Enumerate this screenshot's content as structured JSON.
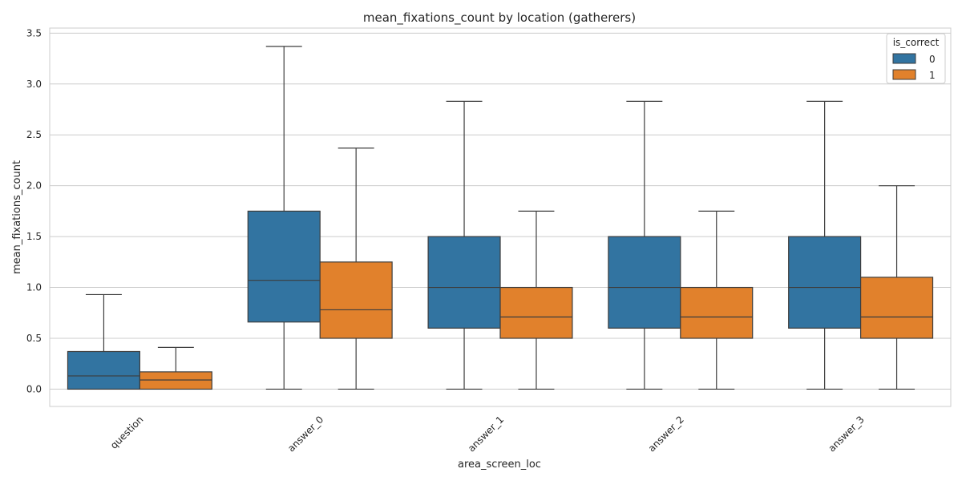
{
  "chart_data": {
    "type": "box",
    "title": "mean_fixations_count by location (gatherers)",
    "xlabel": "area_screen_loc",
    "ylabel": "mean_fixations_count",
    "ylim": [
      -0.17,
      3.55
    ],
    "yticks": [
      "0.0",
      "0.5",
      "1.0",
      "1.5",
      "2.0",
      "2.5",
      "3.0",
      "3.5"
    ],
    "ytick_values": [
      0,
      0.5,
      1.0,
      1.5,
      2.0,
      2.5,
      3.0,
      3.5
    ],
    "grid": true,
    "legend": {
      "title": "is_correct",
      "placement": "top-right"
    },
    "categories": [
      "question",
      "answer_0",
      "answer_1",
      "answer_2",
      "answer_3"
    ],
    "series": [
      {
        "name": "0",
        "color": "#3274a1",
        "boxes": [
          {
            "whisker_low": 0.0,
            "q1": 0.0,
            "median": 0.13,
            "q3": 0.37,
            "whisker_high": 0.93
          },
          {
            "whisker_low": 0.0,
            "q1": 0.66,
            "median": 1.07,
            "q3": 1.75,
            "whisker_high": 3.37
          },
          {
            "whisker_low": 0.0,
            "q1": 0.6,
            "median": 1.0,
            "q3": 1.5,
            "whisker_high": 2.83
          },
          {
            "whisker_low": 0.0,
            "q1": 0.6,
            "median": 1.0,
            "q3": 1.5,
            "whisker_high": 2.83
          },
          {
            "whisker_low": 0.0,
            "q1": 0.6,
            "median": 1.0,
            "q3": 1.5,
            "whisker_high": 2.83
          }
        ]
      },
      {
        "name": "1",
        "color": "#e1812c",
        "boxes": [
          {
            "whisker_low": 0.0,
            "q1": 0.0,
            "median": 0.09,
            "q3": 0.17,
            "whisker_high": 0.41
          },
          {
            "whisker_low": 0.0,
            "q1": 0.5,
            "median": 0.78,
            "q3": 1.25,
            "whisker_high": 2.37
          },
          {
            "whisker_low": 0.0,
            "q1": 0.5,
            "median": 0.71,
            "q3": 1.0,
            "whisker_high": 1.75
          },
          {
            "whisker_low": 0.0,
            "q1": 0.5,
            "median": 0.71,
            "q3": 1.0,
            "whisker_high": 1.75
          },
          {
            "whisker_low": 0.0,
            "q1": 0.5,
            "median": 0.71,
            "q3": 1.1,
            "whisker_high": 2.0
          }
        ]
      }
    ]
  }
}
